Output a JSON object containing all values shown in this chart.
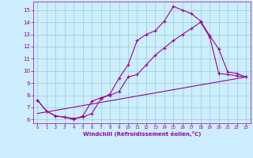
{
  "xlabel": "Windchill (Refroidissement éolien,°C)",
  "bg_color": "#cceeff",
  "line_color": "#990099",
  "grid_color": "#99cccc",
  "xlim": [
    -0.5,
    23.5
  ],
  "ylim": [
    5.7,
    15.7
  ],
  "xticks": [
    0,
    1,
    2,
    3,
    4,
    5,
    6,
    7,
    8,
    9,
    10,
    11,
    12,
    13,
    14,
    15,
    16,
    17,
    18,
    19,
    20,
    21,
    22,
    23
  ],
  "yticks": [
    6,
    7,
    8,
    9,
    10,
    11,
    12,
    13,
    14,
    15
  ],
  "line1_x": [
    0,
    1,
    2,
    3,
    4,
    5,
    6,
    7,
    8,
    9,
    10,
    11,
    12,
    13,
    14,
    15,
    16,
    17,
    18,
    19,
    20,
    21,
    22,
    23
  ],
  "line1_y": [
    7.6,
    6.7,
    6.3,
    6.2,
    6.1,
    6.2,
    6.5,
    7.7,
    8.1,
    9.4,
    10.5,
    12.5,
    13.0,
    13.3,
    14.1,
    15.3,
    15.0,
    14.7,
    14.1,
    12.9,
    11.8,
    9.9,
    9.8,
    9.5
  ],
  "line2_x": [
    0,
    1,
    2,
    3,
    4,
    5,
    6,
    7,
    8,
    9,
    10,
    11,
    12,
    13,
    14,
    15,
    16,
    17,
    18,
    19,
    20,
    21,
    22,
    23
  ],
  "line2_y": [
    7.6,
    6.7,
    6.3,
    6.2,
    6.0,
    6.3,
    7.5,
    7.8,
    8.0,
    8.3,
    9.5,
    9.7,
    10.5,
    11.3,
    11.9,
    12.5,
    13.0,
    13.5,
    14.0,
    12.8,
    9.8,
    9.7,
    9.6,
    9.5
  ],
  "line3_x": [
    0,
    23
  ],
  "line3_y": [
    6.5,
    9.5
  ],
  "marker": "+",
  "markersize": 3,
  "linewidth": 0.8
}
